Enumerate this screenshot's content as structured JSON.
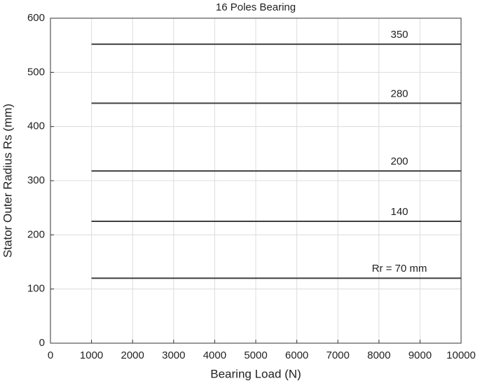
{
  "chart_data": {
    "type": "line",
    "title": "16 Poles Bearing",
    "xlabel": "Bearing Load (N)",
    "ylabel": "Stator Outer Radius Rs (mm)",
    "xlim": [
      0,
      10000
    ],
    "xticks": [
      0,
      1000,
      2000,
      3000,
      4000,
      5000,
      6000,
      7000,
      8000,
      9000,
      10000
    ],
    "ylim": [
      0,
      600
    ],
    "yticks": [
      0,
      100,
      200,
      300,
      400,
      500,
      600
    ],
    "grid": true,
    "series": [
      {
        "name": "350",
        "color": "#404040",
        "x": [
          1000,
          10000
        ],
        "values": [
          552,
          552
        ]
      },
      {
        "name": "280",
        "color": "#404040",
        "x": [
          1000,
          10000
        ],
        "values": [
          443,
          443
        ]
      },
      {
        "name": "200",
        "color": "#404040",
        "x": [
          1000,
          10000
        ],
        "values": [
          318,
          318
        ]
      },
      {
        "name": "140",
        "color": "#404040",
        "x": [
          1000,
          10000
        ],
        "values": [
          225,
          225
        ]
      },
      {
        "name": "Rr = 70 mm",
        "color": "#404040",
        "x": [
          1000,
          10000
        ],
        "values": [
          120,
          120
        ]
      }
    ]
  }
}
